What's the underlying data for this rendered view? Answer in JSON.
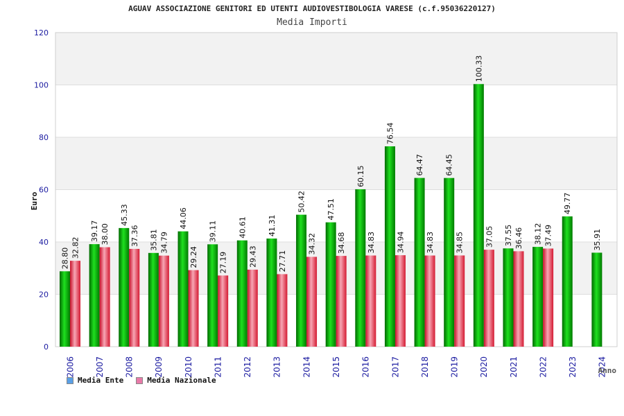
{
  "chart_data": {
    "type": "bar",
    "title": "AGUAV ASSOCIAZIONE GENITORI ED UTENTI AUDIOVESTIBOLOGIA VARESE (c.f.95036220127)",
    "subtitle": "Media Importi",
    "ylabel": "Euro",
    "xlabel": "Anno",
    "ylim": [
      0,
      120
    ],
    "yticks": [
      0,
      20,
      40,
      60,
      80,
      100,
      120
    ],
    "categories": [
      "2006",
      "2007",
      "2008",
      "2009",
      "2010",
      "2011",
      "2012",
      "2013",
      "2014",
      "2015",
      "2016",
      "2017",
      "2018",
      "2019",
      "2020",
      "2021",
      "2022",
      "2023",
      "2024"
    ],
    "series": [
      {
        "name": "Media Ente",
        "color": "#00b800",
        "legend_color": "#5aa0e6",
        "values": [
          28.8,
          39.17,
          45.33,
          35.81,
          44.06,
          39.11,
          40.61,
          41.31,
          50.42,
          47.51,
          60.15,
          76.54,
          64.47,
          64.45,
          100.33,
          37.55,
          38.12,
          49.77,
          35.91
        ],
        "labels": [
          "28.80",
          "39.17",
          "45.33",
          "35.81",
          "44.06",
          "39.11",
          "40.61",
          "41.31",
          "50.42",
          "47.51",
          "60.15",
          "76.54",
          "64.47",
          "64.45",
          "100.33",
          "37.55",
          "38.12",
          "49.77",
          "35.91"
        ]
      },
      {
        "name": "Media Nazionale",
        "color": "#e83040",
        "legend_color": "#e87aa8",
        "values": [
          32.82,
          38.0,
          37.36,
          34.79,
          29.24,
          27.19,
          29.43,
          27.71,
          34.32,
          34.68,
          34.83,
          34.94,
          34.83,
          34.85,
          37.05,
          36.46,
          37.49,
          null,
          null
        ],
        "labels": [
          "32.82",
          "38.00",
          "37.36",
          "34.79",
          "29.24",
          "27.19",
          "29.43",
          "27.71",
          "34.32",
          "34.68",
          "34.83",
          "34.94",
          "34.83",
          "34.85",
          "37.05",
          "36.46",
          "37.49",
          null,
          null
        ]
      }
    ],
    "grid": true,
    "legend_position": "bottom-left"
  }
}
